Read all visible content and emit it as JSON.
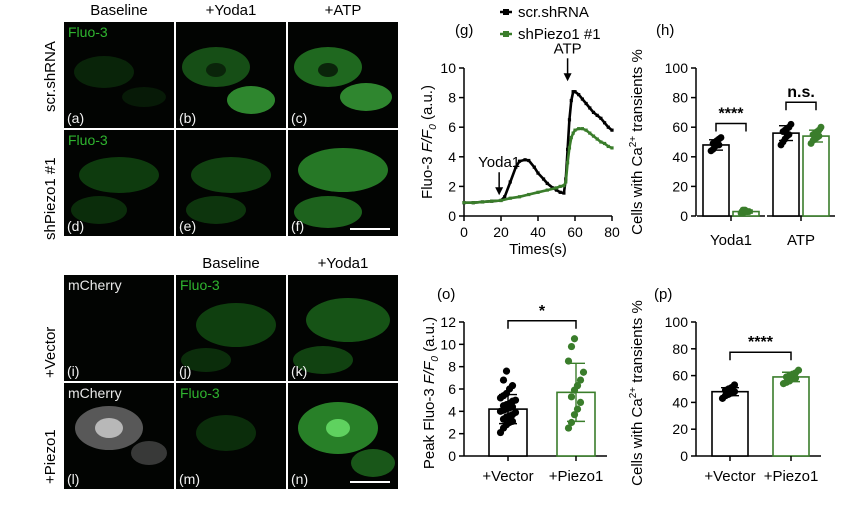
{
  "top": {
    "col_headers": [
      "Baseline",
      "+Yoda1",
      "+ATP"
    ],
    "row_headers": [
      "scr.shRNA",
      "shPiezo1 #1"
    ],
    "tiles": [
      {
        "label": "(a)",
        "channel": "Fluo-3"
      },
      {
        "label": "(b)",
        "channel": ""
      },
      {
        "label": "(c)",
        "channel": ""
      },
      {
        "label": "(d)",
        "channel": "Fluo-3"
      },
      {
        "label": "(e)",
        "channel": ""
      },
      {
        "label": "(f)",
        "channel": ""
      }
    ]
  },
  "bottom": {
    "col_headers": [
      "Baseline",
      "+Yoda1"
    ],
    "row_headers": [
      "+Vector",
      "+Piezo1"
    ],
    "tiles": [
      {
        "label": "(i)",
        "channel": "mCherry"
      },
      {
        "label": "(j)",
        "channel": "Fluo-3"
      },
      {
        "label": "(k)",
        "channel": ""
      },
      {
        "label": "(l)",
        "channel": "mCherry"
      },
      {
        "label": "(m)",
        "channel": "Fluo-3"
      },
      {
        "label": "(n)",
        "channel": ""
      }
    ]
  },
  "colors": {
    "black": "#000000",
    "green": "#3a7d2b",
    "fluo": "#2fb52f"
  },
  "chart_data": [
    {
      "panel": "(g)",
      "type": "line",
      "ylabel_pre": "Fluo-3 ",
      "ylabel_italic": "F/F",
      "ylabel_sub": "0",
      "ylabel_post": " (a.u.)",
      "xlabel": "Times(s)",
      "xlim": [
        0,
        80
      ],
      "ylim": [
        0,
        10
      ],
      "xticks": [
        0,
        20,
        40,
        60,
        80
      ],
      "yticks": [
        0,
        2,
        4,
        6,
        8,
        10
      ],
      "annotations": [
        {
          "text": "Yoda1",
          "x": 19,
          "y": 1.2
        },
        {
          "text": "ATP",
          "x": 56,
          "y": 8.9
        }
      ],
      "series": [
        {
          "name": "scr.shRNA",
          "color": "#000000",
          "x": [
            0,
            5,
            10,
            15,
            20,
            22,
            25,
            28,
            30,
            33,
            35,
            38,
            40,
            43,
            45,
            48,
            50,
            52,
            54,
            55,
            56,
            57,
            58,
            59,
            60,
            62,
            64,
            66,
            68,
            70,
            72,
            74,
            76,
            78,
            80
          ],
          "y": [
            0.9,
            0.9,
            0.95,
            1.0,
            1.05,
            1.3,
            2.3,
            3.3,
            3.7,
            3.8,
            3.75,
            3.3,
            2.9,
            2.5,
            2.2,
            1.9,
            1.75,
            1.6,
            1.55,
            2.5,
            4.5,
            6.5,
            7.8,
            8.4,
            8.4,
            8.2,
            7.9,
            7.6,
            7.3,
            7.0,
            6.8,
            6.6,
            6.3,
            6.0,
            5.8
          ]
        },
        {
          "name": "shPiezo1 #1",
          "color": "#3a7d2b",
          "x": [
            0,
            5,
            10,
            15,
            20,
            25,
            30,
            35,
            40,
            45,
            50,
            52,
            54,
            55,
            56,
            57,
            58,
            59,
            60,
            62,
            64,
            66,
            68,
            70,
            72,
            74,
            76,
            78,
            80
          ],
          "y": [
            0.9,
            0.9,
            0.95,
            1.0,
            1.05,
            1.2,
            1.3,
            1.45,
            1.6,
            1.75,
            1.9,
            2.0,
            2.05,
            2.3,
            3.6,
            4.6,
            5.3,
            5.6,
            5.8,
            5.9,
            5.9,
            5.8,
            5.6,
            5.4,
            5.2,
            5.0,
            4.9,
            4.7,
            4.6
          ]
        }
      ]
    },
    {
      "panel": "(h)",
      "type": "bar",
      "ylabel_pre": "Cells with Ca",
      "ylabel_sup": "2+",
      "ylabel_post": " transients %",
      "ylim": [
        0,
        100
      ],
      "yticks": [
        0,
        20,
        40,
        60,
        80,
        100
      ],
      "groups": [
        "Yoda1",
        "ATP"
      ],
      "series": [
        {
          "name": "scr.shRNA",
          "color": "#000000",
          "values": [
            48,
            56
          ],
          "sd": [
            3.5,
            5
          ],
          "points": [
            [
              44,
              45,
              47,
              48,
              48,
              49,
              50,
              51,
              52,
              53
            ],
            [
              48,
              50,
              52,
              54,
              55,
              57,
              58,
              59,
              60,
              62
            ]
          ]
        },
        {
          "name": "shPiezo1 #1",
          "color": "#3a7d2b",
          "values": [
            3,
            54
          ],
          "sd": [
            1,
            4
          ],
          "points": [
            [
              2,
              2,
              3,
              3,
              3,
              4,
              4,
              3
            ],
            [
              49,
              51,
              52,
              53,
              54,
              55,
              56,
              57,
              58,
              60
            ]
          ]
        }
      ],
      "significance": [
        "****",
        "n.s."
      ]
    },
    {
      "panel": "(o)",
      "type": "bar",
      "ylabel_pre": "Peak Fluo-3 ",
      "ylabel_italic": "F/F",
      "ylabel_sub": "0",
      "ylabel_post": " (a.u.)",
      "ylim": [
        0,
        12
      ],
      "yticks": [
        0,
        2,
        4,
        6,
        8,
        10,
        12
      ],
      "categories": [
        "+Vector",
        "+Piezo1"
      ],
      "colors": [
        "#000000",
        "#3a7d2b"
      ],
      "values": [
        4.2,
        5.7
      ],
      "sd": [
        1.3,
        2.6
      ],
      "points": [
        [
          2.1,
          2.5,
          2.8,
          3.0,
          3.1,
          3.3,
          3.5,
          3.6,
          3.7,
          3.9,
          4.0,
          4.1,
          4.2,
          4.3,
          4.4,
          4.5,
          4.6,
          4.7,
          4.9,
          5.0,
          5.2,
          5.4,
          5.6,
          6.0,
          6.3,
          6.8,
          7.6
        ],
        [
          2.5,
          3.0,
          3.7,
          4.2,
          4.8,
          5.3,
          5.9,
          6.3,
          6.8,
          7.5,
          8.5,
          9.8,
          10.5
        ]
      ],
      "significance": "*"
    },
    {
      "panel": "(p)",
      "type": "bar",
      "ylabel_pre": "Cells with Ca",
      "ylabel_sup": "2+",
      "ylabel_post": " transients %",
      "ylim": [
        0,
        100
      ],
      "yticks": [
        0,
        20,
        40,
        60,
        80,
        100
      ],
      "categories": [
        "+Vector",
        "+Piezo1"
      ],
      "colors": [
        "#000000",
        "#3a7d2b"
      ],
      "values": [
        48,
        59
      ],
      "sd": [
        3,
        3.5
      ],
      "points": [
        [
          43,
          45,
          46,
          47,
          48,
          49,
          50,
          51,
          53
        ],
        [
          54,
          55,
          56,
          58,
          58,
          59,
          60,
          61,
          62,
          64
        ]
      ],
      "significance": "****"
    }
  ]
}
